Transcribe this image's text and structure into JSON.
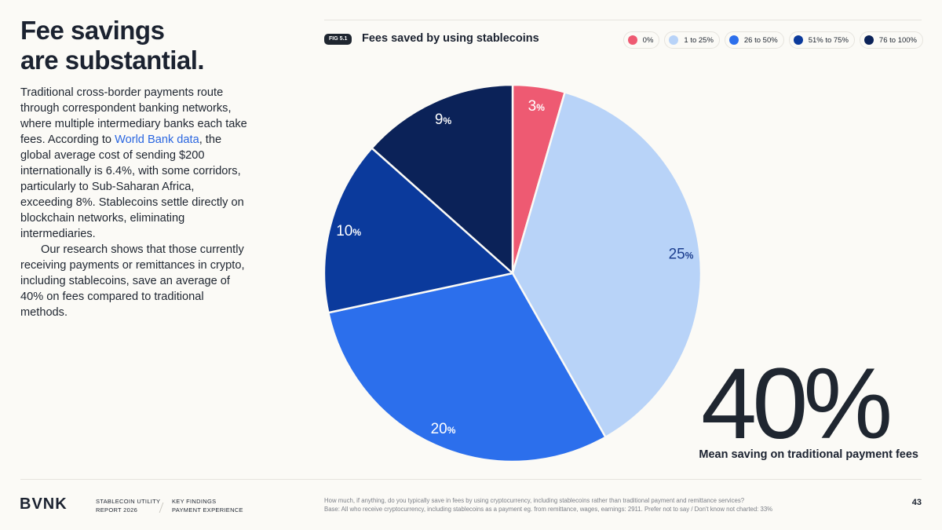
{
  "headline": [
    "Fee savings",
    "are substantial."
  ],
  "body": {
    "p1_before": "Traditional cross-border payments route through correspondent banking networks, where multiple intermediary banks each take fees. According to ",
    "p1_link": "World Bank data",
    "p1_after": ", the global average cost of sending $200 internationally is 6.4%, with some corridors, particularly to Sub-Saharan Africa, exceeding 8%. Stablecoins settle directly on blockchain networks, eliminating intermediaries.",
    "p2": "Our research shows that those currently receiving payments or remittances in crypto, including stablecoins, save an average of 40% on fees compared to traditional methods."
  },
  "figure": {
    "badge": "FIG 5.1",
    "title": "Fees saved by using stablecoins"
  },
  "chart_data": {
    "type": "pie",
    "title": "Fees saved by using stablecoins",
    "categories": [
      "0%",
      "1 to 25%",
      "26 to 50%",
      "51% to 75%",
      "76 to 100%"
    ],
    "values": [
      3,
      25,
      20,
      10,
      9
    ],
    "colors": [
      "#ee5a72",
      "#b8d3f8",
      "#2c6fec",
      "#0b3a9c",
      "#0b2258"
    ],
    "label_colors": [
      "#ffffff",
      "#1d3f8f",
      "#ffffff",
      "#ffffff",
      "#ffffff"
    ],
    "value_suffix": "%",
    "legend_position": "top-right",
    "start_angle_deg": 0,
    "direction": "clockwise"
  },
  "stat": {
    "value": "40%",
    "caption": "Mean saving on traditional payment fees"
  },
  "footer": {
    "logo": "BVNK",
    "report": [
      "STABLECOIN UTILITY",
      "REPORT 2026"
    ],
    "section": [
      "KEY FINDINGS",
      "PAYMENT EXPERIENCE"
    ],
    "question": "How much, if anything, do you typically save in fees by using cryptocurrency, including stablecoins rather than traditional payment and remittance services?",
    "base": "Base: All who receive cryptocurrency, including stablecoins as a payment eg. from remittance, wages, earnings: 2911. Prefer not to say / Don't know not charted: 33%",
    "page": "43"
  }
}
